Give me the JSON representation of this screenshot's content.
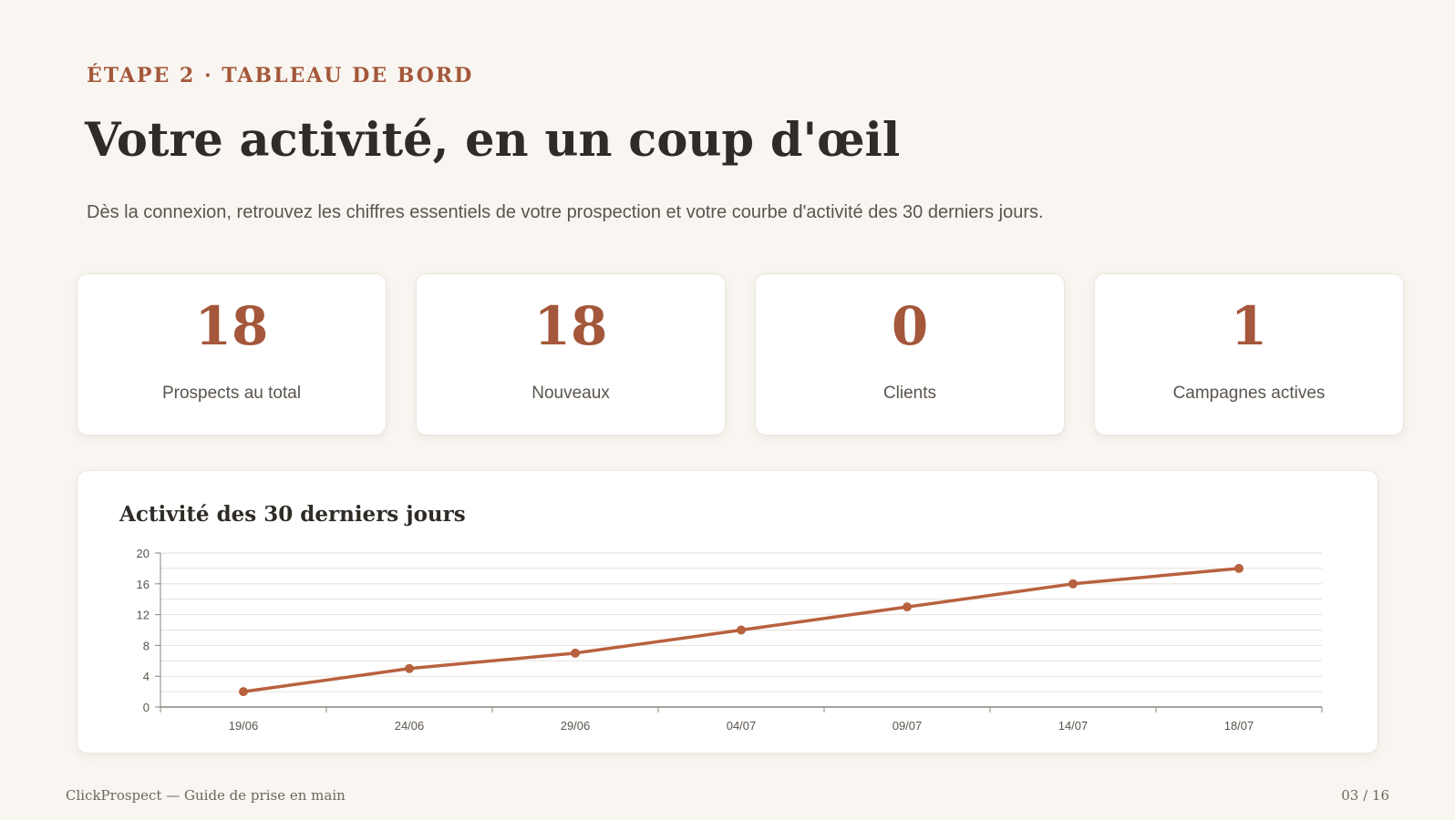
{
  "header": {
    "eyebrow": "ÉTAPE 2 · TABLEAU DE BORD",
    "title": "Votre activité, en un coup d'œil",
    "subtitle": "Dès la connexion, retrouvez les chiffres essentiels de votre prospection et votre courbe d'activité des 30 derniers jours."
  },
  "kpis": [
    {
      "value": "18",
      "label": "Prospects au total"
    },
    {
      "value": "18",
      "label": "Nouveaux"
    },
    {
      "value": "0",
      "label": "Clients"
    },
    {
      "value": "1",
      "label": "Campagnes actives"
    }
  ],
  "colors": {
    "accent": "#a4573a",
    "line": "#b8613f",
    "background": "#f9f6f1"
  },
  "chart_data": {
    "type": "line",
    "title": "Activité des 30 derniers jours",
    "xlabel": "",
    "ylabel": "",
    "categories": [
      "19/06",
      "24/06",
      "29/06",
      "04/07",
      "09/07",
      "14/07",
      "18/07"
    ],
    "series": [
      {
        "values": [
          2,
          5,
          7,
          10,
          13,
          16,
          18
        ]
      }
    ],
    "ylim": [
      0,
      20
    ],
    "yticks": [
      0,
      4,
      8,
      12,
      16,
      20
    ],
    "grid": true,
    "legend": "none"
  },
  "footer": {
    "left": "ClickProspect — Guide de prise en main",
    "right": "03 / 16"
  }
}
